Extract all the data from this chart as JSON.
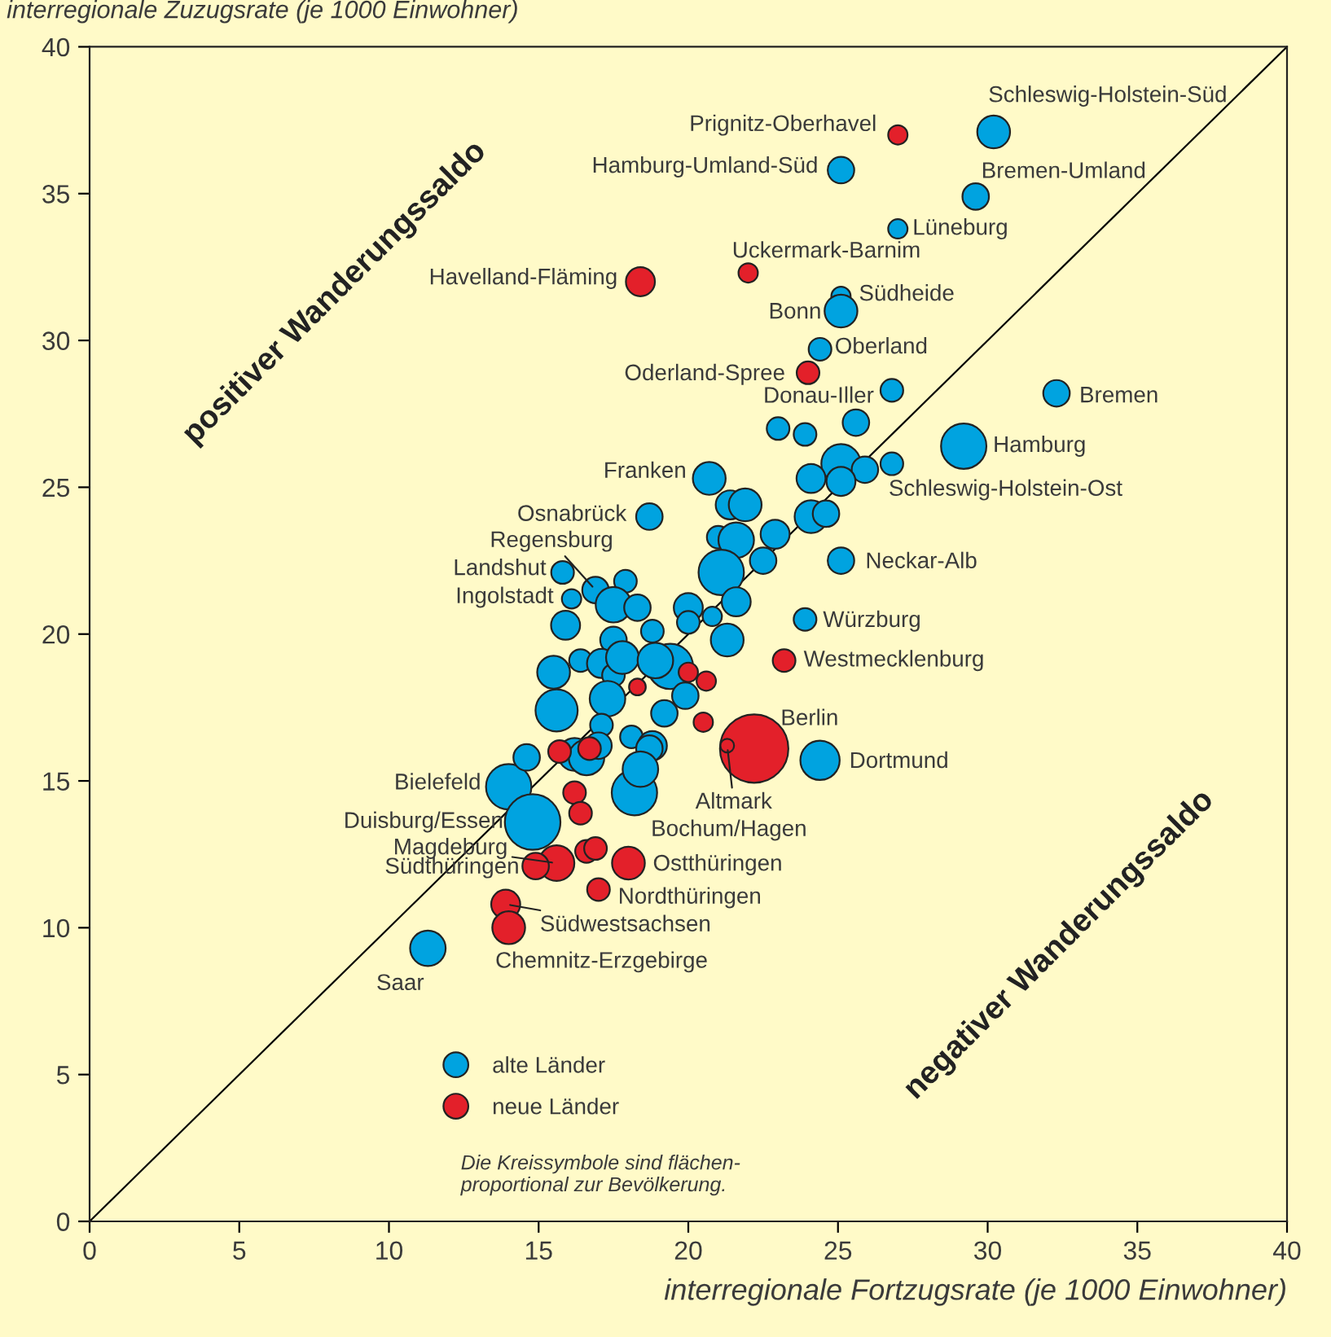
{
  "chart_data": {
    "type": "bubble",
    "xlabel": "interregionale Fortzugsrate (je 1000 Einwohner)",
    "ylabel": "interregionale Zuzugsrate (je 1000 Einwohner)",
    "xlim": [
      0,
      40
    ],
    "ylim": [
      0,
      40
    ],
    "xticks": [
      0,
      5,
      10,
      15,
      20,
      25,
      30,
      35,
      40
    ],
    "yticks": [
      0,
      5,
      10,
      15,
      20,
      25,
      30,
      35,
      40
    ],
    "grid": false,
    "legend": "bottom left",
    "marker": "circle",
    "series": [
      {
        "name": "alte Länder",
        "color": "#00a3e0",
        "x": [
          30.2,
          25.1,
          29.6,
          27.0,
          25.1,
          25.1,
          24.4,
          26.8,
          32.3,
          29.2,
          26.8,
          20.7,
          18.7,
          25.1,
          15.8,
          16.1,
          16.9,
          23.9,
          24.4,
          14.0,
          14.8,
          18.2,
          11.3,
          23.0,
          23.9,
          25.6,
          25.1,
          25.9,
          24.1,
          25.1,
          21.4,
          21.9,
          24.1,
          24.6,
          21.0,
          21.6,
          22.9,
          22.5,
          21.1,
          21.6,
          17.9,
          17.5,
          18.3,
          15.9,
          17.5,
          18.8,
          20.0,
          20.0,
          20.8,
          21.3,
          15.5,
          16.4,
          17.1,
          17.5,
          17.8,
          19.4,
          18.9,
          19.9,
          19.2,
          15.6,
          17.3,
          17.1,
          18.1,
          18.8,
          14.6,
          16.2,
          16.6,
          17.0,
          18.7,
          18.4
        ],
        "values": [
          37.1,
          35.8,
          34.9,
          33.8,
          31.5,
          31.0,
          29.7,
          28.3,
          28.2,
          26.4,
          25.8,
          25.3,
          24.0,
          22.5,
          22.1,
          21.2,
          21.5,
          20.5,
          15.7,
          14.8,
          13.6,
          14.6,
          9.3,
          27.0,
          26.8,
          27.2,
          25.8,
          25.6,
          25.3,
          25.2,
          24.4,
          24.4,
          24.0,
          24.1,
          23.3,
          23.2,
          23.4,
          22.5,
          22.1,
          21.1,
          21.8,
          21.0,
          20.9,
          20.3,
          19.8,
          20.1,
          20.9,
          20.4,
          20.6,
          19.8,
          18.7,
          19.1,
          19.0,
          18.6,
          19.2,
          18.9,
          19.1,
          17.9,
          17.3,
          17.4,
          17.8,
          16.9,
          16.5,
          16.2,
          15.8,
          15.9,
          15.8,
          16.2,
          16.1,
          15.4
        ],
        "sizes": [
          0.23,
          0.15,
          0.15,
          0.08,
          0.08,
          0.23,
          0.11,
          0.11,
          0.15,
          0.44,
          0.11,
          0.23,
          0.15,
          0.15,
          0.11,
          0.08,
          0.15,
          0.11,
          0.33,
          0.44,
          0.66,
          0.44,
          0.27,
          0.11,
          0.11,
          0.15,
          0.33,
          0.15,
          0.18,
          0.18,
          0.18,
          0.23,
          0.23,
          0.15,
          0.11,
          0.27,
          0.18,
          0.15,
          0.44,
          0.18,
          0.11,
          0.27,
          0.15,
          0.18,
          0.15,
          0.11,
          0.18,
          0.11,
          0.08,
          0.23,
          0.23,
          0.11,
          0.18,
          0.11,
          0.23,
          0.44,
          0.27,
          0.15,
          0.15,
          0.38,
          0.27,
          0.11,
          0.11,
          0.18,
          0.15,
          0.23,
          0.27,
          0.15,
          0.15,
          0.27
        ]
      },
      {
        "name": "neue Länder",
        "color": "#e3202a",
        "x": [
          27.0,
          22.0,
          18.4,
          24.0,
          23.2,
          22.2,
          21.3,
          15.6,
          14.9,
          18.0,
          17.0,
          13.9,
          14.0,
          16.2,
          16.4,
          16.6,
          16.9,
          15.7,
          16.7,
          20.0,
          20.6,
          18.3,
          20.5
        ],
        "values": [
          37.0,
          32.3,
          32.0,
          28.9,
          19.1,
          16.1,
          16.2,
          12.2,
          12.1,
          12.2,
          11.3,
          10.8,
          10.0,
          14.6,
          13.9,
          12.6,
          12.7,
          16.0,
          16.1,
          18.7,
          18.4,
          18.2,
          17.0
        ],
        "sizes": [
          0.08,
          0.08,
          0.18,
          0.11,
          0.11,
          1,
          0.04,
          0.27,
          0.15,
          0.23,
          0.11,
          0.18,
          0.23,
          0.11,
          0.11,
          0.11,
          0.11,
          0.11,
          0.11,
          0.08,
          0.08,
          0.06,
          0.08
        ]
      },
      {
        "type": "line",
        "color": "#000000",
        "x": [
          0,
          40
        ],
        "values": [
          0,
          40
        ],
        "line_style": "solid",
        "marker": "none"
      }
    ],
    "annotations": [
      {
        "text": "Schleswig-Holstein-Süd",
        "x": 30.2,
        "y": 37.1
      },
      {
        "text": "Prignitz-Oberhavel",
        "x": 27.0,
        "y": 37.0
      },
      {
        "text": "Hamburg-Umland-Süd",
        "x": 25.1,
        "y": 35.8
      },
      {
        "text": "Bremen-Umland",
        "x": 29.6,
        "y": 34.9
      },
      {
        "text": "Lüneburg",
        "x": 27.0,
        "y": 33.8
      },
      {
        "text": "Uckermark-Barnim",
        "x": 22.0,
        "y": 32.3
      },
      {
        "text": "Havelland-Fläming",
        "x": 18.4,
        "y": 32.0
      },
      {
        "text": "Südheide",
        "x": 25.1,
        "y": 31.5
      },
      {
        "text": "Bonn",
        "x": 25.1,
        "y": 31.0
      },
      {
        "text": "Oberland",
        "x": 24.4,
        "y": 29.7
      },
      {
        "text": "Oderland-Spree",
        "x": 24.0,
        "y": 28.9
      },
      {
        "text": "Donau-Iller",
        "x": 26.8,
        "y": 28.3
      },
      {
        "text": "Bremen",
        "x": 32.3,
        "y": 28.2
      },
      {
        "text": "Hamburg",
        "x": 29.2,
        "y": 26.4
      },
      {
        "text": "Schleswig-Holstein-Ost",
        "x": 26.8,
        "y": 25.8
      },
      {
        "text": "Franken",
        "x": 20.7,
        "y": 25.3
      },
      {
        "text": "Osnabrück",
        "x": 18.7,
        "y": 24.0
      },
      {
        "text": "Neckar-Alb",
        "x": 25.1,
        "y": 22.5
      },
      {
        "text": "Landshut",
        "x": 15.8,
        "y": 22.1
      },
      {
        "text": "Regensburg",
        "x": 16.9,
        "y": 21.5
      },
      {
        "text": "Ingolstadt",
        "x": 16.1,
        "y": 21.2
      },
      {
        "text": "Würzburg",
        "x": 23.9,
        "y": 20.5
      },
      {
        "text": "Westmecklenburg",
        "x": 23.2,
        "y": 19.1
      },
      {
        "text": "Berlin",
        "x": 22.2,
        "y": 16.1
      },
      {
        "text": "Altmark",
        "x": 21.3,
        "y": 16.2
      },
      {
        "text": "Dortmund",
        "x": 24.4,
        "y": 15.7
      },
      {
        "text": "Bielefeld",
        "x": 14.0,
        "y": 14.8
      },
      {
        "text": "Duisburg/Essen",
        "x": 14.8,
        "y": 13.6
      },
      {
        "text": "Bochum/Hagen",
        "x": 18.2,
        "y": 14.6
      },
      {
        "text": "Magdeburg",
        "x": 15.6,
        "y": 12.2
      },
      {
        "text": "Südthüringen",
        "x": 14.9,
        "y": 12.1
      },
      {
        "text": "Ostthüringen",
        "x": 18.0,
        "y": 12.2
      },
      {
        "text": "Nordthüringen",
        "x": 17.0,
        "y": 11.3
      },
      {
        "text": "Südwestsachsen",
        "x": 13.9,
        "y": 10.8
      },
      {
        "text": "Chemnitz-Erzgebirge",
        "x": 14.0,
        "y": 10.0
      },
      {
        "text": "Saar",
        "x": 11.3,
        "y": 9.3
      },
      "positiver Wanderungssaldo",
      "negativer Wanderungssaldo",
      "Die Kreissymbole sind flächen-\nproportional zur Bevölkerung."
    ]
  }
}
